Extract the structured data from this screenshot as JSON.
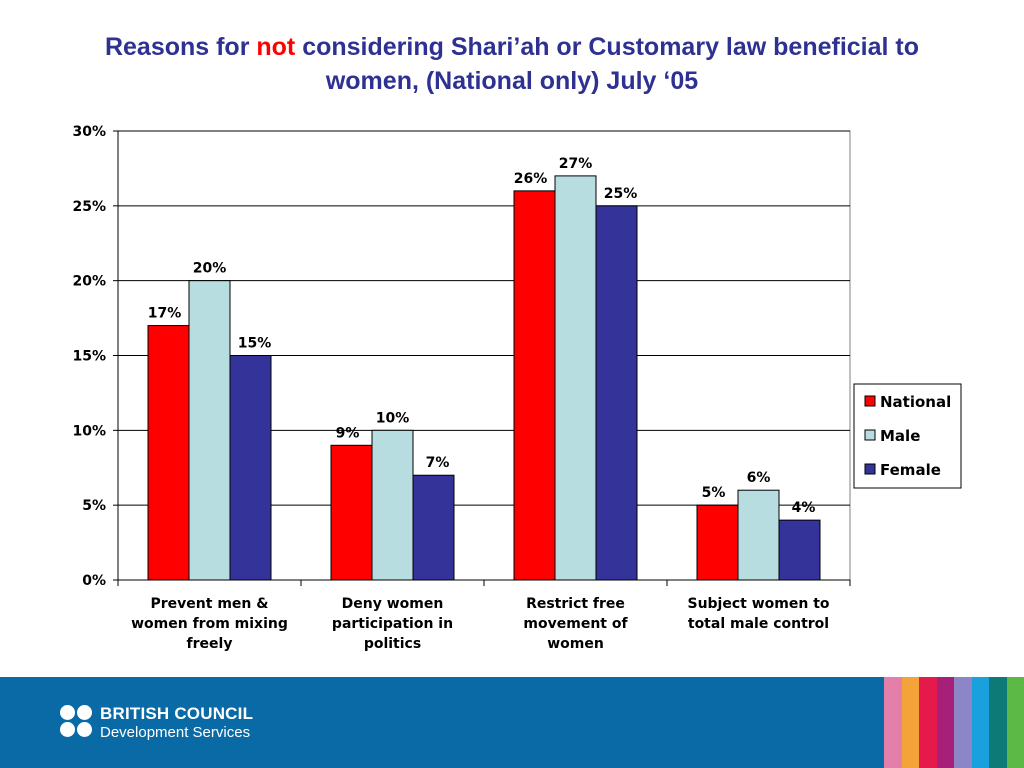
{
  "title": {
    "part1": "Reasons for ",
    "highlight": "not",
    "part2": " considering Shari’ah or Customary law beneficial to",
    "line2": "women, (National only) July ‘05"
  },
  "chart_data": {
    "type": "bar",
    "categories": [
      [
        "Prevent men &",
        "women from mixing",
        "freely"
      ],
      [
        "Deny women",
        "participation in",
        "politics"
      ],
      [
        "Restrict free",
        "movement of",
        "women"
      ],
      [
        "Subject women to",
        "total male control"
      ]
    ],
    "series": [
      {
        "name": "National",
        "color": "#ff0000",
        "values": [
          17,
          9,
          26,
          5
        ],
        "labels": [
          "17%",
          "9%",
          "26%",
          "5%"
        ]
      },
      {
        "name": "Male",
        "color": "#b7dde1",
        "values": [
          20,
          10,
          27,
          6
        ],
        "labels": [
          "20%",
          "10%",
          "27%",
          "6%"
        ]
      },
      {
        "name": "Female",
        "color": "#333399",
        "values": [
          15,
          7,
          25,
          4
        ],
        "labels": [
          "15%",
          "7%",
          "25%",
          "4%"
        ]
      }
    ],
    "ylim": [
      0,
      30
    ],
    "yticks": [
      0,
      5,
      10,
      15,
      20,
      25,
      30
    ],
    "ytick_labels": [
      "0%",
      "5%",
      "10%",
      "15%",
      "20%",
      "25%",
      "30%"
    ],
    "grid": true,
    "legend": "right"
  },
  "footer": {
    "org_line1": "BRITISH COUNCIL",
    "org_line2": "Development Services",
    "stripe_colors": [
      "#e37fa8",
      "#f4a23a",
      "#e5194a",
      "#a6207a",
      "#8c86c6",
      "#1aa0dc",
      "#0e7a78",
      "#5db946"
    ]
  }
}
